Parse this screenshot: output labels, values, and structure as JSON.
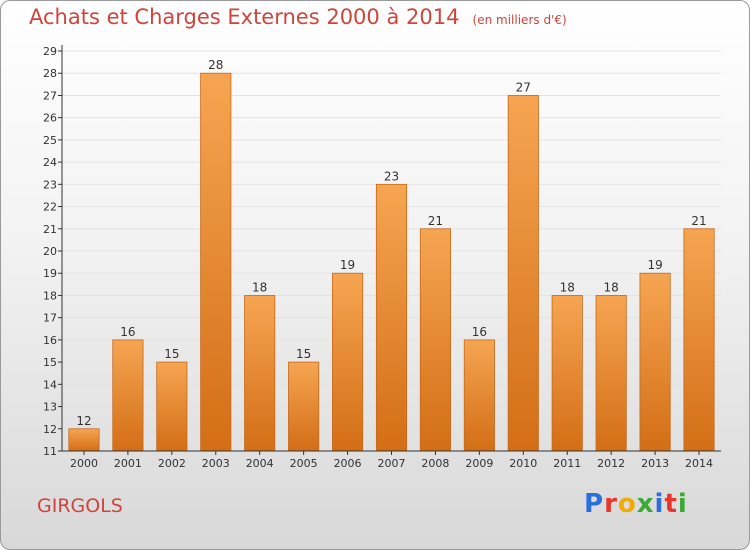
{
  "title": "Achats et Charges Externes 2000 à 2014",
  "unit": "(en milliers d'€)",
  "commune": "GIRGOLS",
  "logo": {
    "letters": [
      "P",
      "r",
      "o",
      "x",
      "i",
      "t",
      "i"
    ],
    "colors": [
      "#2a6fdb",
      "#e8362c",
      "#f2a900",
      "#3aa935",
      "#2a6fdb",
      "#e8362c",
      "#3aa935"
    ]
  },
  "colors": {
    "title": "#d0443c",
    "bar_top": "#f6a552",
    "bar_bottom": "#d36e16",
    "bar_edge": "#c8691a",
    "grid": "#e3e3e3",
    "axis": "#333333"
  },
  "chart_data": {
    "type": "bar",
    "categories": [
      "2000",
      "2001",
      "2002",
      "2003",
      "2004",
      "2005",
      "2006",
      "2007",
      "2008",
      "2009",
      "2010",
      "2011",
      "2012",
      "2013",
      "2014"
    ],
    "values": [
      12,
      16,
      15,
      28,
      18,
      15,
      19,
      23,
      21,
      16,
      27,
      18,
      18,
      19,
      21
    ],
    "ylim": [
      11,
      29
    ],
    "ytick_step": 1,
    "grid": true,
    "data_labels": true
  }
}
